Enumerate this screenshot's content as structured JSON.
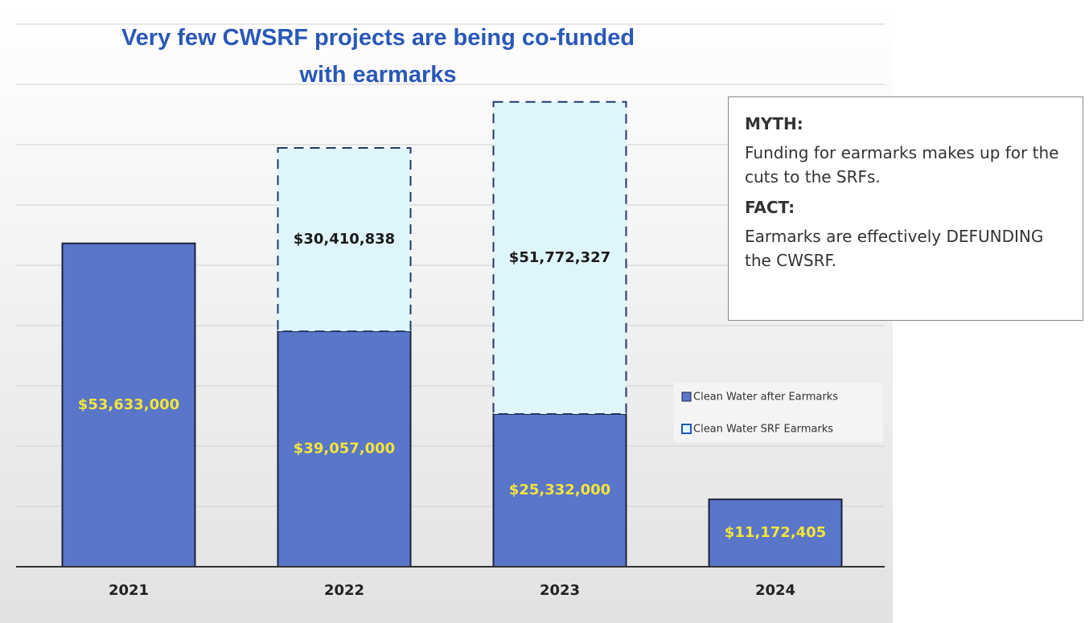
{
  "chart_data": {
    "type": "stacked_bar",
    "title": "Very few CWSRF projects are being co-funded with earmarks",
    "categories": [
      "2021",
      "2022",
      "2023",
      "2024"
    ],
    "series": [
      {
        "name": "Clean Water after Earmarks",
        "color": "#5a76c8",
        "values": [
          53633000,
          39057000,
          25332000,
          11172405
        ],
        "value_labels": [
          "$53,633,000",
          "$39,057,000",
          "$25,332,000",
          "$11,172,405"
        ]
      },
      {
        "name": "Clean Water SRF Earmarks",
        "color": "#dff5fc",
        "values": [
          null,
          30410838,
          51772327,
          null
        ],
        "value_labels": [
          null,
          "$30,410,838",
          "$51,772,327",
          null
        ]
      }
    ],
    "ylim": [
      0,
      90000000
    ],
    "yticks": [
      0,
      10000000,
      20000000,
      30000000,
      40000000,
      50000000,
      60000000,
      70000000,
      80000000,
      90000000
    ],
    "grid": true,
    "callout": {
      "myth_heading": "MYTH:",
      "myth_text": "Funding for earmarks makes up for the cuts to the SRFs.",
      "fact_heading": "FACT:",
      "fact_text": "Earmarks are effectively DEFUNDING the CWSRF."
    }
  }
}
